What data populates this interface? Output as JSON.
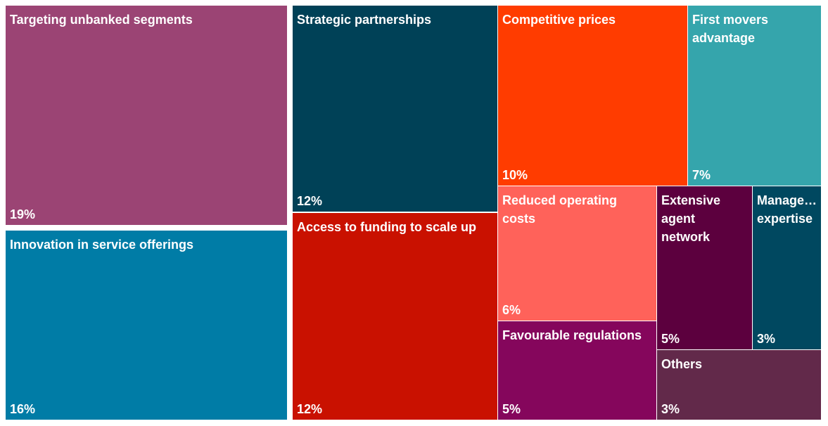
{
  "chart_data": {
    "type": "treemap",
    "unit": "%",
    "items": [
      {
        "label": "Targeting unbanked segments",
        "value": 19,
        "value_label": "19%",
        "color": "#9B4474"
      },
      {
        "label": "Innovation in service offerings",
        "value": 16,
        "value_label": "16%",
        "color": "#007CA6"
      },
      {
        "label": "Strategic partnerships",
        "value": 12,
        "value_label": "12%",
        "color": "#004157"
      },
      {
        "label": "Access to funding to scale up",
        "value": 12,
        "value_label": "12%",
        "color": "#C91100"
      },
      {
        "label": "Competitive prices",
        "value": 10,
        "value_label": "10%",
        "color": "#FF3C00"
      },
      {
        "label": "First movers\n advantage",
        "value": 7,
        "value_label": "7%",
        "color": "#35A5AC"
      },
      {
        "label": "Reduced operating costs",
        "value": 6,
        "value_label": "6%",
        "color": "#FF625A"
      },
      {
        "label": "Extensive\n agent\n network",
        "value": 5,
        "value_label": "5%",
        "color": "#5C003E"
      },
      {
        "label": "Manage…\n expertise",
        "value": 3,
        "value_label": "3%",
        "color": "#004860"
      },
      {
        "label": "Favourable regulations",
        "value": 5,
        "value_label": "5%",
        "color": "#85065C"
      },
      {
        "label": "Others",
        "value": 3,
        "value_label": "3%",
        "color": "#62294A"
      }
    ]
  }
}
